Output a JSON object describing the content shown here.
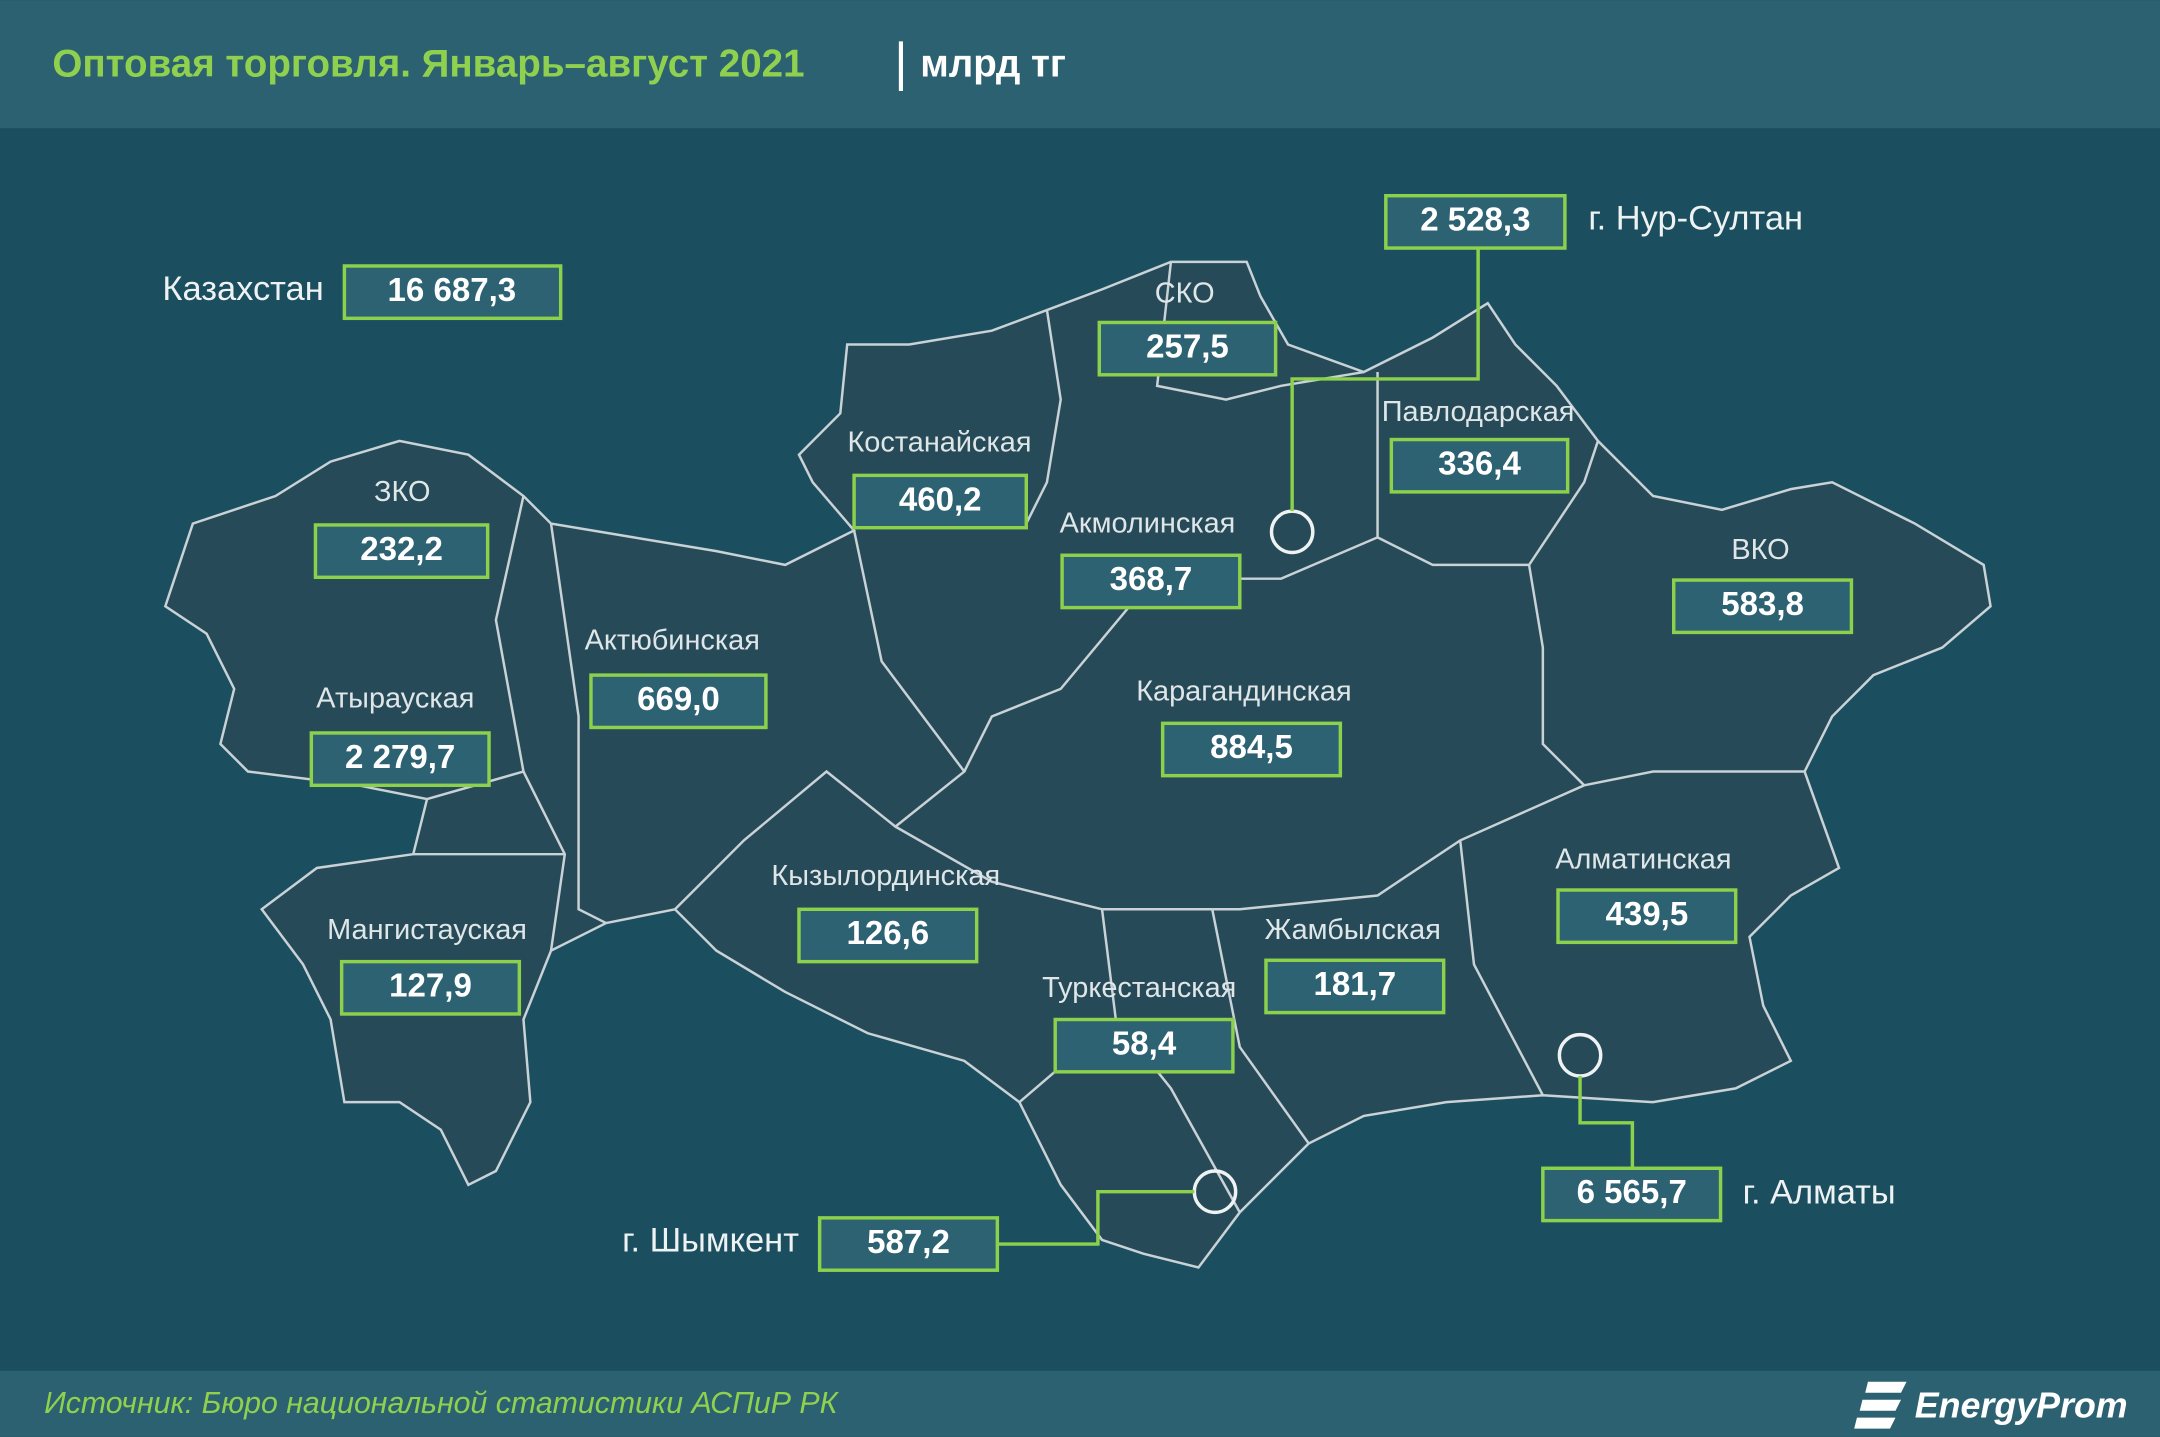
{
  "header": {
    "title": "Оптовая торговля. Январь–август 2021",
    "unit": "млрд тг"
  },
  "total": {
    "label": "Казахстан",
    "value": "16 687,3"
  },
  "regions": [
    {
      "label": "г. Нур-Султан",
      "value": "2 528,3"
    },
    {
      "label": "СКО",
      "value": "257,5"
    },
    {
      "label": "Павлодарская",
      "value": "336,4"
    },
    {
      "label": "Костанайская",
      "value": "460,2"
    },
    {
      "label": "ЗКО",
      "value": "232,2"
    },
    {
      "label": "Акмолинская",
      "value": "368,7"
    },
    {
      "label": "ВКО",
      "value": "583,8"
    },
    {
      "label": "Актюбинская",
      "value": "669,0"
    },
    {
      "label": "Атырауская",
      "value": "2 279,7"
    },
    {
      "label": "Карагандинская",
      "value": "884,5"
    },
    {
      "label": "Кызылординская",
      "value": "126,6"
    },
    {
      "label": "Алматинская",
      "value": "439,5"
    },
    {
      "label": "Мангистауская",
      "value": "127,9"
    },
    {
      "label": "Жамбылская",
      "value": "181,7"
    },
    {
      "label": "Туркестанская",
      "value": "58,4"
    },
    {
      "label": "г. Алматы",
      "value": "6 565,7"
    },
    {
      "label": "г. Шымкент",
      "value": "587,2"
    }
  ],
  "footer": {
    "source": "Источник: Бюро национальной статистики АСПиР РК",
    "logo": "EnergyProm"
  }
}
